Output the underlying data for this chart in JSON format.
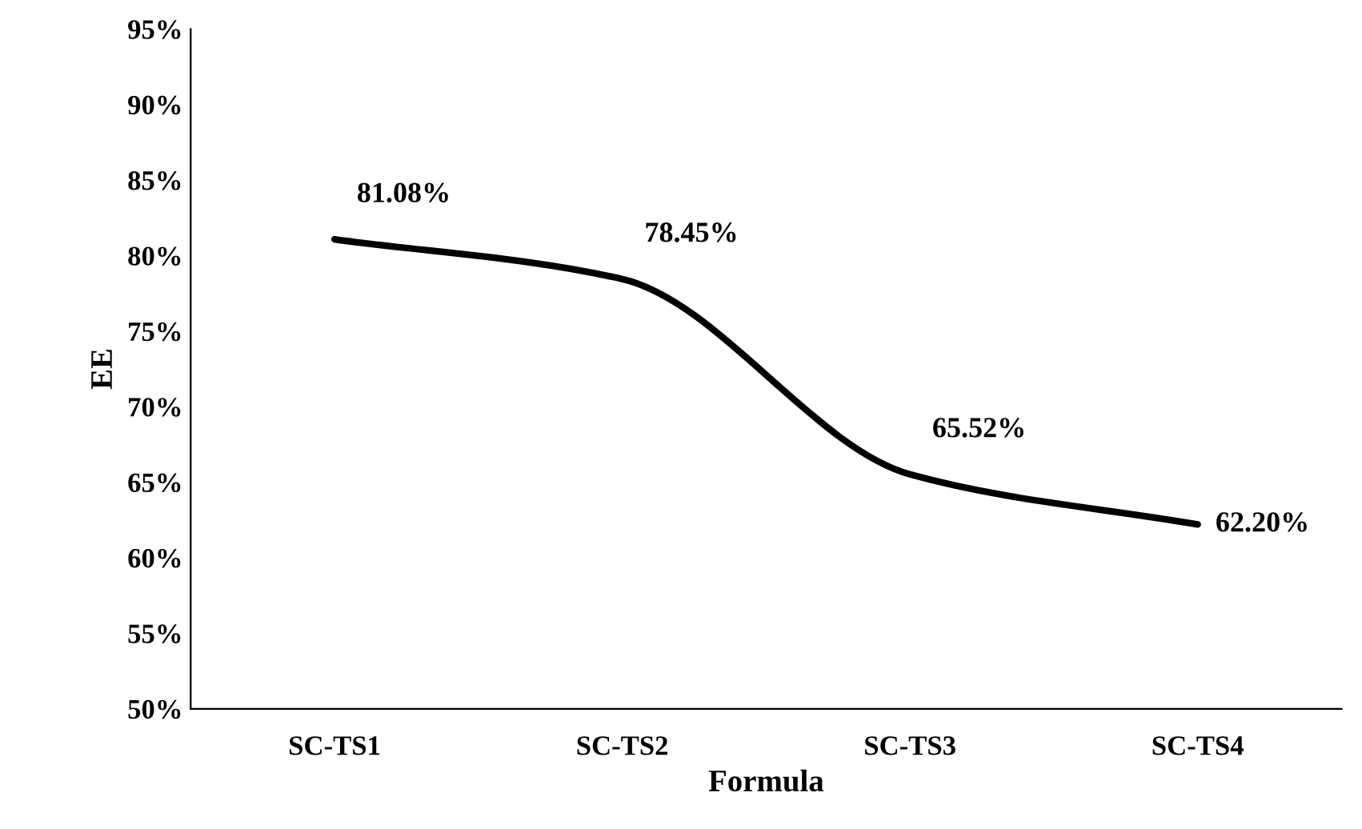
{
  "chart_data": {
    "type": "line",
    "xlabel": "Formula",
    "ylabel": "EE",
    "categories": [
      "SC-TS1",
      "SC-TS2",
      "SC-TS3",
      "SC-TS4"
    ],
    "series": [
      {
        "color": "#000000",
        "values": [
          81.08,
          78.45,
          65.52,
          62.2
        ],
        "value_labels": [
          "81.08%",
          "78.45%",
          "65.52%",
          "62.20%"
        ]
      }
    ],
    "ylim": [
      50,
      95
    ],
    "yticks": [
      {
        "value": 50,
        "label": "50%"
      },
      {
        "value": 55,
        "label": "55%"
      },
      {
        "value": 60,
        "label": "60%"
      },
      {
        "value": 65,
        "label": "65%"
      },
      {
        "value": 70,
        "label": "70%"
      },
      {
        "value": 75,
        "label": "75%"
      },
      {
        "value": 80,
        "label": "80%"
      },
      {
        "value": 85,
        "label": "85%"
      },
      {
        "value": 90,
        "label": "90%"
      },
      {
        "value": 95,
        "label": "95%"
      }
    ],
    "grid": false,
    "legend": false,
    "marker": "none",
    "line_style": "solid"
  }
}
